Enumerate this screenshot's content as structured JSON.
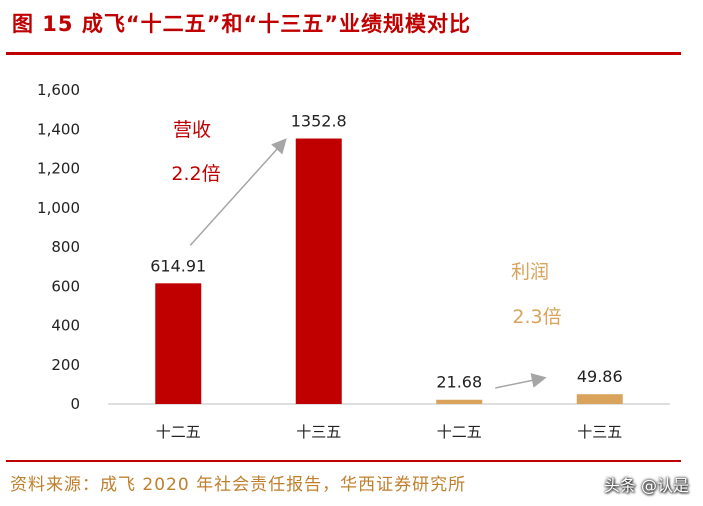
{
  "title": "图 15  成飞“十二五”和“十三五”业绩规模对比",
  "source": "资料来源：成飞 2020 年社会责任报告，华西证券研究所",
  "watermark": "头条 @认是",
  "colors": {
    "revenue_bar": "#c00000",
    "profit_bar": "#d9a35c",
    "revenue_annotation": "#c00000",
    "profit_annotation": "#d9a35c",
    "arrow": "#a6a6a6"
  },
  "chart_data": {
    "type": "bar",
    "categories": [
      "十二五",
      "十三五",
      "十二五",
      "十三五"
    ],
    "values": [
      614.91,
      1352.8,
      21.68,
      49.86
    ],
    "value_labels": [
      "614.91",
      "1352.8",
      "21.68",
      "49.86"
    ],
    "groups": [
      {
        "name": "营收",
        "ratio": "2.2倍",
        "indices": [
          0,
          1
        ]
      },
      {
        "name": "利润",
        "ratio": "2.3倍",
        "indices": [
          2,
          3
        ]
      }
    ],
    "yticks": [
      "0",
      "200",
      "400",
      "600",
      "800",
      "1,000",
      "1,200",
      "1,400",
      "1,600"
    ],
    "ylim": [
      0,
      1600
    ],
    "grid": false,
    "legend": "none"
  }
}
